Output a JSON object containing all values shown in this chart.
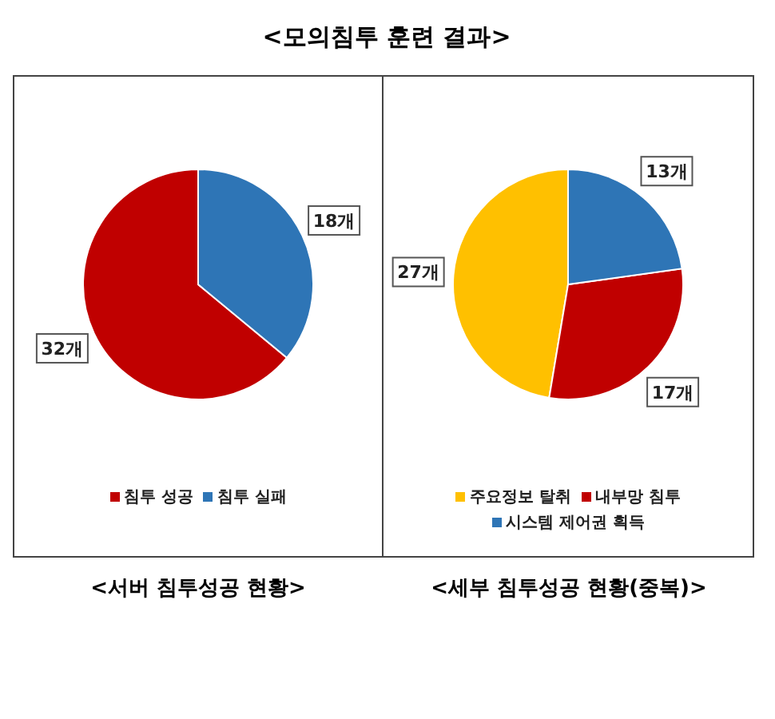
{
  "chart_data": [
    {
      "type": "pie",
      "title": "<모의침투 훈련 결과>",
      "categories": [
        "침투 성공",
        "침투 실패"
      ],
      "values": [
        32,
        18
      ],
      "colors": [
        "#c00000",
        "#2e75b6"
      ],
      "value_labels": [
        "32개",
        "18개"
      ],
      "legend": "bottom",
      "annotations": [
        "<서버 침투성공 현황>"
      ]
    },
    {
      "type": "pie",
      "categories": [
        "주요정보 탈취",
        "내부망 침투",
        "시스템 제어권 획득"
      ],
      "values": [
        27,
        17,
        13
      ],
      "colors": [
        "#ffc000",
        "#c00000",
        "#2e75b6"
      ],
      "value_labels": [
        "27개",
        "17개",
        "13개"
      ],
      "legend": "bottom",
      "annotations": [
        "<세부 침투성공 현황(중복)>"
      ]
    }
  ]
}
